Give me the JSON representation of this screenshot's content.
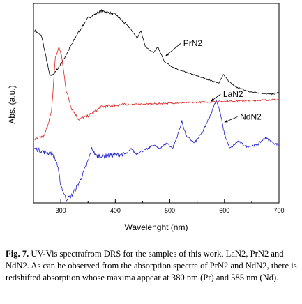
{
  "chart_data": {
    "type": "line",
    "xlabel": "Wavelenght (nm)",
    "ylabel": "Abs. (a.u.)",
    "xlim": [
      250,
      700
    ],
    "x_ticks": [
      300,
      400,
      500,
      600,
      700
    ],
    "y_ticks_labeled": false,
    "grid": false,
    "legend": "inline labels with arrows",
    "series": [
      {
        "name": "PrN2",
        "color": "#000000",
        "points": [
          [
            252,
            0.95
          ],
          [
            265,
            0.92
          ],
          [
            280,
            0.7
          ],
          [
            290,
            0.72
          ],
          [
            305,
            0.79
          ],
          [
            330,
            0.93
          ],
          [
            350,
            1.02
          ],
          [
            375,
            1.06
          ],
          [
            400,
            1.04
          ],
          [
            425,
            0.97
          ],
          [
            440,
            0.91
          ],
          [
            447,
            0.95
          ],
          [
            455,
            0.86
          ],
          [
            470,
            0.83
          ],
          [
            478,
            0.86
          ],
          [
            490,
            0.78
          ],
          [
            510,
            0.74
          ],
          [
            540,
            0.71
          ],
          [
            570,
            0.68
          ],
          [
            590,
            0.66
          ],
          [
            598,
            0.71
          ],
          [
            608,
            0.67
          ],
          [
            620,
            0.64
          ],
          [
            650,
            0.61
          ],
          [
            690,
            0.6
          ],
          [
            700,
            0.61
          ]
        ]
      },
      {
        "name": "LaN2",
        "color": "#e02020",
        "points": [
          [
            252,
            0.35
          ],
          [
            270,
            0.37
          ],
          [
            283,
            0.5
          ],
          [
            290,
            0.8
          ],
          [
            297,
            0.86
          ],
          [
            302,
            0.8
          ],
          [
            310,
            0.62
          ],
          [
            320,
            0.52
          ],
          [
            333,
            0.46
          ],
          [
            350,
            0.48
          ],
          [
            375,
            0.53
          ],
          [
            400,
            0.54
          ],
          [
            450,
            0.545
          ],
          [
            500,
            0.55
          ],
          [
            550,
            0.555
          ],
          [
            600,
            0.56
          ],
          [
            650,
            0.565
          ],
          [
            700,
            0.57
          ]
        ]
      },
      {
        "name": "NdN2",
        "color": "#2020cc",
        "points": [
          [
            252,
            0.3
          ],
          [
            270,
            0.28
          ],
          [
            285,
            0.27
          ],
          [
            293,
            0.22
          ],
          [
            300,
            0.1
          ],
          [
            310,
            0.02
          ],
          [
            320,
            0.04
          ],
          [
            335,
            0.12
          ],
          [
            350,
            0.23
          ],
          [
            357,
            0.3
          ],
          [
            365,
            0.26
          ],
          [
            380,
            0.26
          ],
          [
            420,
            0.27
          ],
          [
            430,
            0.3
          ],
          [
            437,
            0.27
          ],
          [
            460,
            0.3
          ],
          [
            470,
            0.32
          ],
          [
            480,
            0.3
          ],
          [
            495,
            0.33
          ],
          [
            505,
            0.3
          ],
          [
            515,
            0.38
          ],
          [
            522,
            0.45
          ],
          [
            530,
            0.37
          ],
          [
            545,
            0.33
          ],
          [
            560,
            0.39
          ],
          [
            575,
            0.49
          ],
          [
            585,
            0.57
          ],
          [
            592,
            0.5
          ],
          [
            600,
            0.38
          ],
          [
            610,
            0.3
          ],
          [
            625,
            0.34
          ],
          [
            640,
            0.31
          ],
          [
            660,
            0.32
          ],
          [
            675,
            0.36
          ],
          [
            690,
            0.33
          ],
          [
            700,
            0.32
          ]
        ]
      }
    ]
  },
  "caption": {
    "fig_label": "Fig. 7.",
    "text": " UV-Vis spectrafrom DRS for the samples of this work, LaN2, PrN2 and NdN2. As can be observed from the absorption spectra of PrN2 and NdN2, there is redshifted absorption whose maxima appear at 380 nm (Pr) and 585 nm (Nd)."
  }
}
